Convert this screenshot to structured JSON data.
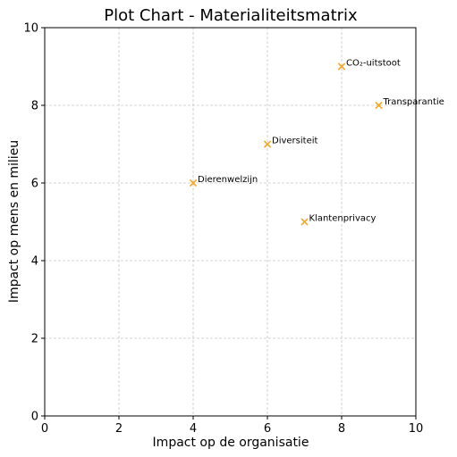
{
  "chart_data": {
    "type": "scatter",
    "title": "Plot Chart - Materialiteitsmatrix",
    "xlabel": "Impact op de organisatie",
    "ylabel": "Impact op mens en milieu",
    "xlim": [
      0,
      10
    ],
    "ylim": [
      0,
      10
    ],
    "xticks": [
      0,
      2,
      4,
      6,
      8,
      10
    ],
    "yticks": [
      0,
      2,
      4,
      6,
      8,
      10
    ],
    "grid": true,
    "marker": "x",
    "marker_color": "#f5a623",
    "points": [
      {
        "label": "CO₂-uitstoot",
        "x": 8,
        "y": 9
      },
      {
        "label": "Transparantie",
        "x": 9,
        "y": 8
      },
      {
        "label": "Diversiteit",
        "x": 6,
        "y": 7
      },
      {
        "label": "Dierenwelzijn",
        "x": 4,
        "y": 6
      },
      {
        "label": "Klantenprivacy",
        "x": 7,
        "y": 5
      }
    ]
  }
}
